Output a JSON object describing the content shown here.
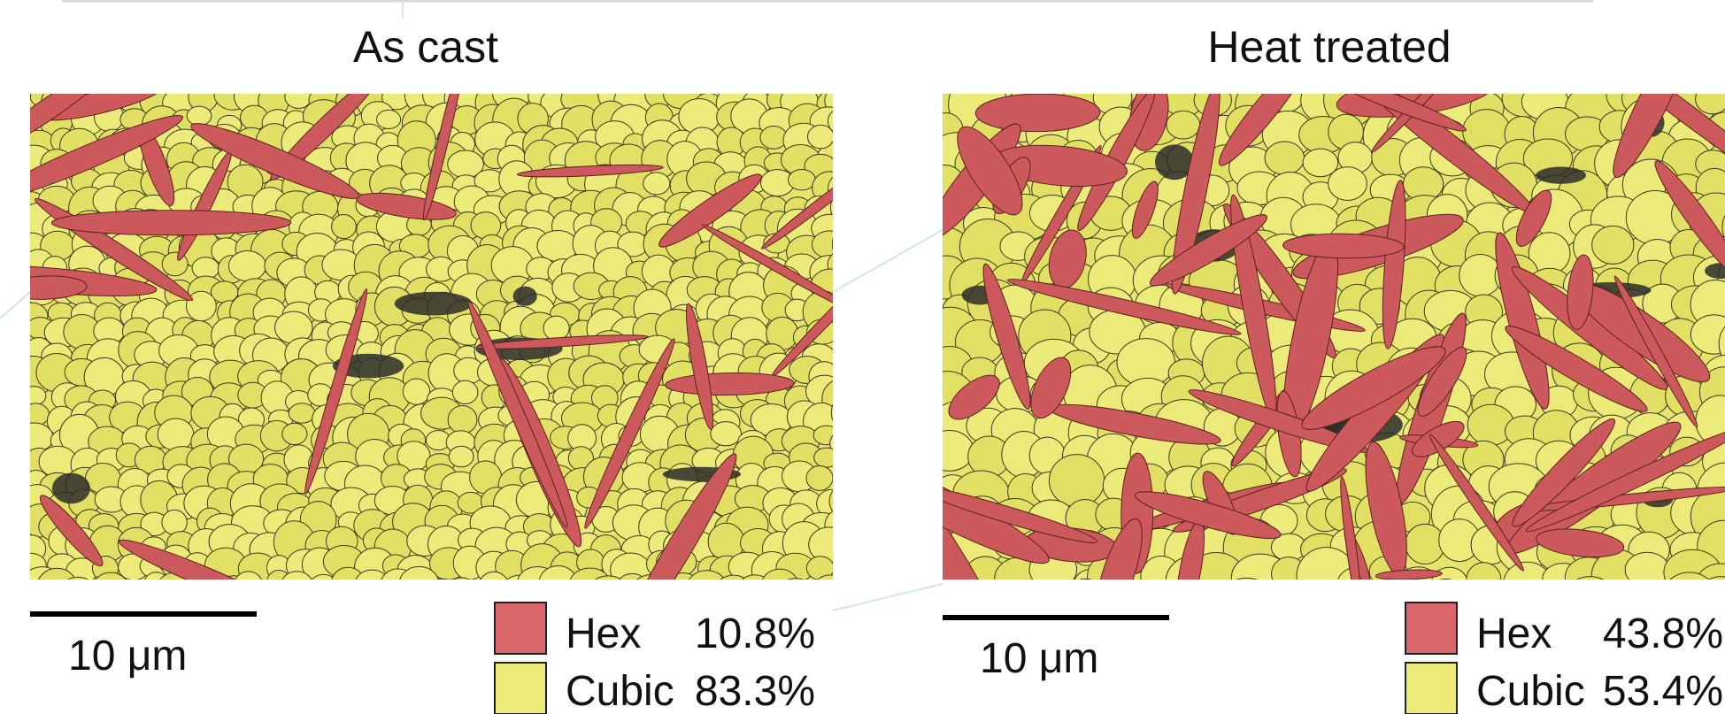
{
  "panels": [
    {
      "title": "As cast",
      "scale_bar": "10 μm",
      "legend": [
        {
          "name": "Hex",
          "percent": "10.8%"
        },
        {
          "name": "Cubic",
          "percent": "83.3%"
        }
      ]
    },
    {
      "title": "Heat treated",
      "scale_bar": "10 μm",
      "legend": [
        {
          "name": "Hex",
          "percent": "43.8%"
        },
        {
          "name": "Cubic",
          "percent": "53.4%"
        }
      ]
    }
  ]
}
